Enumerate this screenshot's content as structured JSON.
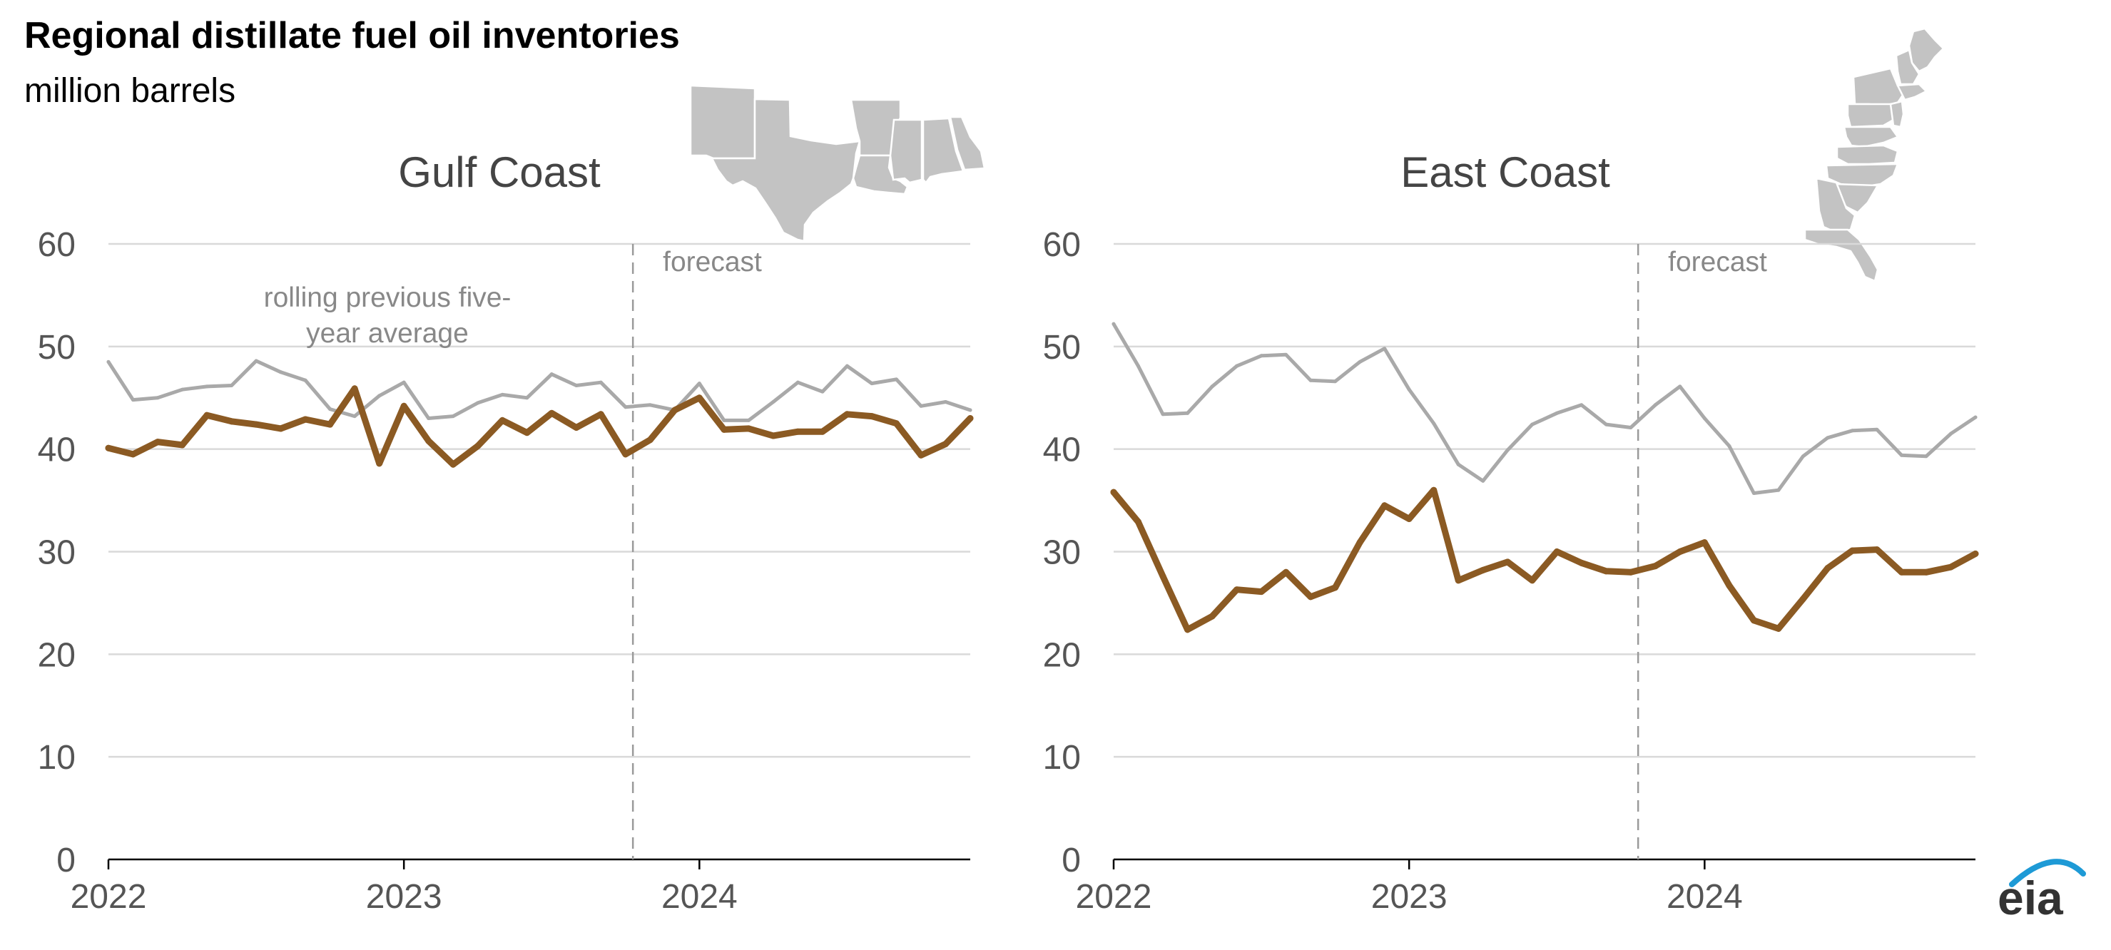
{
  "page": {
    "title": "Regional distillate fuel oil inventories",
    "subtitle": "million barrels"
  },
  "colors": {
    "inventory": "#8B5A23",
    "average": "#A9A9A9"
  },
  "logo": {
    "text": "eia",
    "accent": "#1E9AD6"
  },
  "chart_data": [
    {
      "type": "line",
      "panel": "Gulf Coast",
      "title": "Gulf Coast",
      "map_icon": "gulf-coast-states-map",
      "ylim": [
        0,
        60
      ],
      "yticks": [
        "0",
        "10",
        "20",
        "30",
        "40",
        "50",
        "60"
      ],
      "xticks": [
        "2022",
        "2023",
        "2024"
      ],
      "x_start": "2022-01",
      "x_months": [
        "2022-01",
        "2022-02",
        "2022-03",
        "2022-04",
        "2022-05",
        "2022-06",
        "2022-07",
        "2022-08",
        "2022-09",
        "2022-10",
        "2022-11",
        "2022-12",
        "2023-01",
        "2023-02",
        "2023-03",
        "2023-04",
        "2023-05",
        "2023-06",
        "2023-07",
        "2023-08",
        "2023-09",
        "2023-10",
        "2023-11",
        "2023-12",
        "2024-01",
        "2024-02",
        "2024-03",
        "2024-04",
        "2024-05",
        "2024-06",
        "2024-07",
        "2024-08",
        "2024-09",
        "2024-10",
        "2024-11",
        "2024-12"
      ],
      "forecast_start": "2023-10",
      "forecast_label": "forecast",
      "annotation": [
        "rolling previous five-",
        "year average"
      ],
      "grid": true,
      "series": [
        {
          "key": "average",
          "values": [
            48.5,
            44.8,
            45.0,
            45.8,
            46.1,
            46.2,
            48.6,
            47.5,
            46.7,
            43.9,
            43.2,
            45.2,
            46.5,
            43.0,
            43.2,
            44.5,
            45.3,
            45.0,
            47.3,
            46.2,
            46.5,
            44.1,
            44.3,
            43.8,
            46.4,
            42.8,
            42.8,
            44.6,
            46.5,
            45.6,
            48.1,
            46.4,
            46.8,
            44.2,
            44.6,
            43.8
          ]
        },
        {
          "key": "inventory",
          "values": [
            40.1,
            39.5,
            40.7,
            40.4,
            43.3,
            42.7,
            42.4,
            42.0,
            42.9,
            42.4,
            45.9,
            38.6,
            44.2,
            40.8,
            38.5,
            40.3,
            42.8,
            41.6,
            43.5,
            42.1,
            43.4,
            39.5,
            40.9,
            43.8,
            45.0,
            41.9,
            42.0,
            41.3,
            41.7,
            41.7,
            43.4,
            43.2,
            42.5,
            39.4,
            40.5,
            43.0
          ]
        }
      ]
    },
    {
      "type": "line",
      "panel": "East Coast",
      "title": "East Coast",
      "map_icon": "east-coast-states-map",
      "ylim": [
        0,
        60
      ],
      "yticks": [
        "0",
        "10",
        "20",
        "30",
        "40",
        "50",
        "60"
      ],
      "xticks": [
        "2022",
        "2023",
        "2024"
      ],
      "x_start": "2022-01",
      "x_months": [
        "2022-01",
        "2022-02",
        "2022-03",
        "2022-04",
        "2022-05",
        "2022-06",
        "2022-07",
        "2022-08",
        "2022-09",
        "2022-10",
        "2022-11",
        "2022-12",
        "2023-01",
        "2023-02",
        "2023-03",
        "2023-04",
        "2023-05",
        "2023-06",
        "2023-07",
        "2023-08",
        "2023-09",
        "2023-10",
        "2023-11",
        "2023-12",
        "2024-01",
        "2024-02",
        "2024-03",
        "2024-04",
        "2024-05",
        "2024-06",
        "2024-07",
        "2024-08",
        "2024-09",
        "2024-10",
        "2024-11",
        "2024-12"
      ],
      "forecast_start": "2023-10",
      "forecast_label": "forecast",
      "grid": true,
      "series": [
        {
          "key": "average",
          "values": [
            52.2,
            48.1,
            43.4,
            43.5,
            46.1,
            48.1,
            49.1,
            49.2,
            46.7,
            46.6,
            48.5,
            49.8,
            45.8,
            42.5,
            38.5,
            36.9,
            39.9,
            42.4,
            43.5,
            44.3,
            42.4,
            42.1,
            44.3,
            46.1,
            43.0,
            40.3,
            35.7,
            36.0,
            39.3,
            41.1,
            41.8,
            41.9,
            39.4,
            39.3,
            41.5,
            43.1
          ]
        },
        {
          "key": "inventory",
          "values": [
            35.8,
            32.9,
            27.6,
            22.4,
            23.7,
            26.3,
            26.1,
            28.0,
            25.6,
            26.5,
            30.9,
            34.5,
            33.2,
            36.0,
            27.2,
            28.2,
            29.0,
            27.2,
            30.0,
            28.9,
            28.1,
            28.0,
            28.6,
            30.0,
            30.9,
            26.7,
            23.3,
            22.5,
            25.4,
            28.4,
            30.1,
            30.2,
            28.0,
            28.0,
            28.5,
            29.8
          ]
        }
      ]
    }
  ]
}
